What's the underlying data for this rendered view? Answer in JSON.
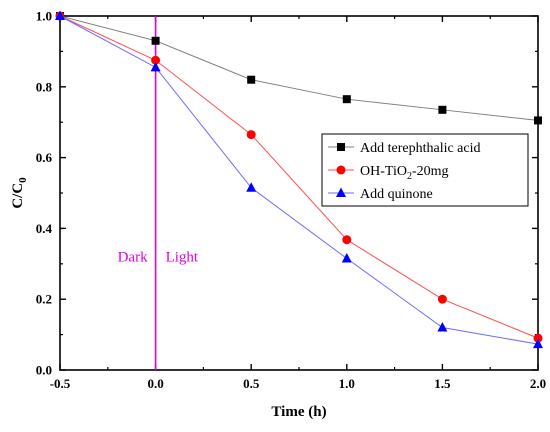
{
  "chart_data": {
    "type": "line",
    "xlabel": "Time (h)",
    "ylabel_main": "C/C",
    "ylabel_sub": "0",
    "xlim": [
      -0.5,
      2.0
    ],
    "ylim": [
      0.0,
      1.0
    ],
    "x_ticks": [
      "-0.5",
      "0.0",
      "0.5",
      "1.0",
      "1.5",
      "2.0"
    ],
    "y_ticks": [
      "0.0",
      "0.2",
      "0.4",
      "0.6",
      "0.8",
      "1.0"
    ],
    "grid": false,
    "legend_position": "middle-right",
    "series": [
      {
        "name": "Add terephthalic acid",
        "marker": "square",
        "marker_color": "#000000",
        "line_color": "#808080",
        "x": [
          -0.5,
          0.0,
          0.5,
          1.0,
          1.5,
          2.0
        ],
        "y": [
          1.0,
          0.93,
          0.82,
          0.765,
          0.735,
          0.705
        ]
      },
      {
        "name": "OH-TiO2-20mg",
        "name_parts": [
          "OH-TiO",
          "2",
          "-20mg"
        ],
        "marker": "circle",
        "marker_color": "#ff0000",
        "line_color": "#ff5050",
        "x": [
          -0.5,
          0.0,
          0.5,
          1.0,
          1.5,
          2.0
        ],
        "y": [
          1.0,
          0.875,
          0.665,
          0.368,
          0.2,
          0.09
        ]
      },
      {
        "name": "Add quinone",
        "marker": "triangle",
        "marker_color": "#0000ff",
        "line_color": "#6b6bff",
        "x": [
          -0.5,
          0.0,
          0.5,
          1.0,
          1.5,
          2.0
        ],
        "y": [
          1.0,
          0.855,
          0.515,
          0.315,
          0.12,
          0.073
        ]
      }
    ],
    "vertical_line": {
      "x": 0.0,
      "color": "#e000e0"
    },
    "annotations": {
      "left": "Dark",
      "right": "Light",
      "y": 0.32
    }
  }
}
